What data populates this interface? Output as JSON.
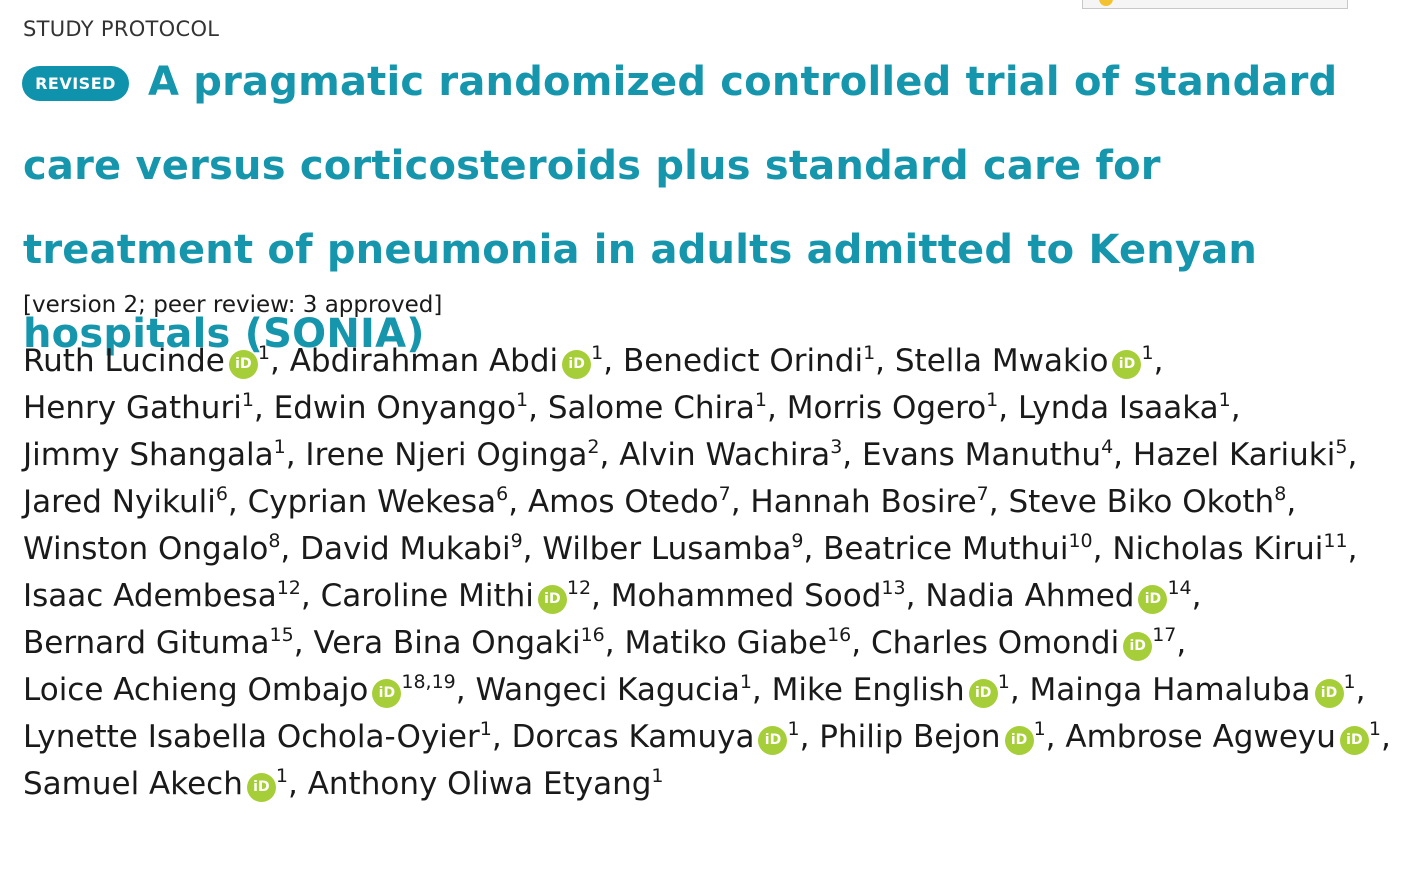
{
  "article_type": "STUDY PROTOCOL",
  "badge": "REVISED",
  "title": "A pragmatic randomized controlled trial of standard care versus corticosteroids plus standard care for treatment of pneumonia in adults admitted to Kenyan hospitals (SONIA)",
  "version_info": "[version 2; peer review: 3 approved]",
  "orcid_icon_text": "iD",
  "colors": {
    "title": "#1596ad",
    "badge": "#0f93ad",
    "orcid": "#a6ce39"
  },
  "authors": [
    {
      "name": "Ruth Lucinde",
      "orcid": true,
      "aff": "1"
    },
    {
      "name": "Abdirahman Abdi",
      "orcid": true,
      "aff": "1"
    },
    {
      "name": "Benedict Orindi",
      "orcid": false,
      "aff": "1"
    },
    {
      "name": "Stella Mwakio",
      "orcid": true,
      "aff": "1"
    },
    {
      "name": "Henry Gathuri",
      "orcid": false,
      "aff": "1"
    },
    {
      "name": "Edwin Onyango",
      "orcid": false,
      "aff": "1"
    },
    {
      "name": "Salome Chira",
      "orcid": false,
      "aff": "1"
    },
    {
      "name": "Morris Ogero",
      "orcid": false,
      "aff": "1"
    },
    {
      "name": "Lynda Isaaka",
      "orcid": false,
      "aff": "1"
    },
    {
      "name": "Jimmy Shangala",
      "orcid": false,
      "aff": "1"
    },
    {
      "name": "Irene Njeri Oginga",
      "orcid": false,
      "aff": "2"
    },
    {
      "name": "Alvin Wachira",
      "orcid": false,
      "aff": "3"
    },
    {
      "name": "Evans Manuthu",
      "orcid": false,
      "aff": "4"
    },
    {
      "name": "Hazel Kariuki",
      "orcid": false,
      "aff": "5"
    },
    {
      "name": "Jared Nyikuli",
      "orcid": false,
      "aff": "6"
    },
    {
      "name": "Cyprian Wekesa",
      "orcid": false,
      "aff": "6"
    },
    {
      "name": "Amos Otedo",
      "orcid": false,
      "aff": "7"
    },
    {
      "name": "Hannah Bosire",
      "orcid": false,
      "aff": "7"
    },
    {
      "name": "Steve Biko Okoth",
      "orcid": false,
      "aff": "8"
    },
    {
      "name": "Winston Ongalo",
      "orcid": false,
      "aff": "8"
    },
    {
      "name": "David Mukabi",
      "orcid": false,
      "aff": "9"
    },
    {
      "name": "Wilber Lusamba",
      "orcid": false,
      "aff": "9"
    },
    {
      "name": "Beatrice Muthui",
      "orcid": false,
      "aff": "10"
    },
    {
      "name": "Nicholas Kirui",
      "orcid": false,
      "aff": "11"
    },
    {
      "name": "Isaac Adembesa",
      "orcid": false,
      "aff": "12"
    },
    {
      "name": "Caroline Mithi",
      "orcid": true,
      "aff": "12"
    },
    {
      "name": "Mohammed Sood",
      "orcid": false,
      "aff": "13"
    },
    {
      "name": "Nadia Ahmed",
      "orcid": true,
      "aff": "14"
    },
    {
      "name": "Bernard Gituma",
      "orcid": false,
      "aff": "15"
    },
    {
      "name": "Vera Bina Ongaki",
      "orcid": false,
      "aff": "16"
    },
    {
      "name": "Matiko Giabe",
      "orcid": false,
      "aff": "16"
    },
    {
      "name": "Charles Omondi",
      "orcid": true,
      "aff": "17"
    },
    {
      "name": "Loice Achieng Ombajo",
      "orcid": true,
      "aff": "18,19"
    },
    {
      "name": "Wangeci Kagucia",
      "orcid": false,
      "aff": "1"
    },
    {
      "name": "Mike English",
      "orcid": true,
      "aff": "1"
    },
    {
      "name": "Mainga Hamaluba",
      "orcid": true,
      "aff": "1"
    },
    {
      "name": "Lynette Isabella Ochola-Oyier",
      "orcid": false,
      "aff": "1"
    },
    {
      "name": "Dorcas Kamuya",
      "orcid": true,
      "aff": "1"
    },
    {
      "name": "Philip Bejon",
      "orcid": true,
      "aff": "1"
    },
    {
      "name": "Ambrose Agweyu",
      "orcid": true,
      "aff": "1"
    },
    {
      "name": "Samuel Akech",
      "orcid": true,
      "aff": "1"
    },
    {
      "name": "Anthony Oliwa Etyang",
      "orcid": false,
      "aff": "1"
    }
  ]
}
